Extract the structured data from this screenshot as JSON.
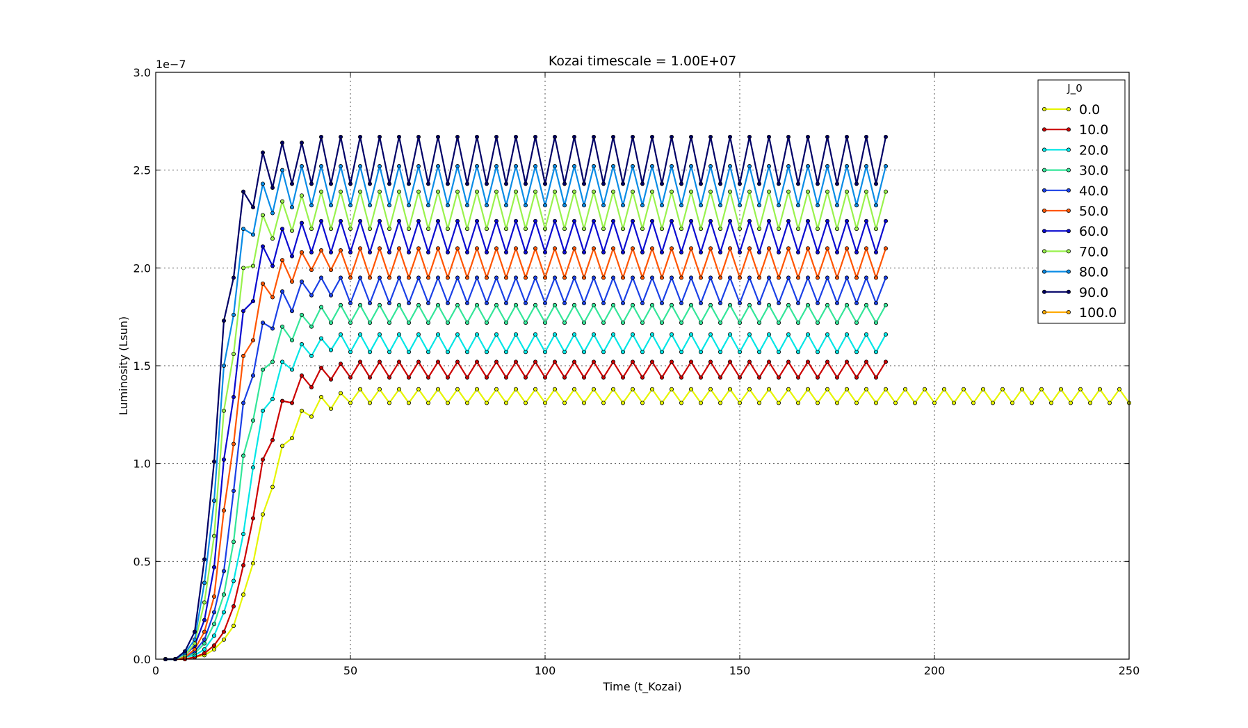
{
  "chart_data": {
    "type": "line",
    "title": "Kozai timescale = 1.00E+07",
    "xlabel": "Time (t_Kozai)",
    "ylabel": "Luminosity (Lsun)",
    "y_offset_text": "1e−7",
    "xlim": [
      0,
      250
    ],
    "ylim": [
      0,
      3.0
    ],
    "x_ticks": [
      0,
      50,
      100,
      150,
      200,
      250
    ],
    "x_tick_labels": [
      "0",
      "50",
      "100",
      "150",
      "200",
      "250"
    ],
    "y_ticks": [
      0,
      0.5,
      1.0,
      1.5,
      2.0,
      2.5,
      3.0
    ],
    "y_tick_labels": [
      "0.0",
      "0.5",
      "1.0",
      "1.5",
      "2.0",
      "2.5",
      "3.0"
    ],
    "grid": true,
    "legend_title": "J_0",
    "legend_position": "top-right",
    "series": [
      {
        "name": "0.0",
        "color": "#e6f500",
        "rise_x": [
          2.5,
          5,
          7.5,
          10,
          12.5,
          15,
          17.5,
          20,
          22.5,
          25,
          27.5,
          30,
          32.5,
          35,
          37.5,
          40,
          42.5,
          45,
          47.5
        ],
        "rise_y": [
          0,
          0,
          0,
          0.01,
          0.02,
          0.05,
          0.1,
          0.17,
          0.33,
          0.49,
          0.74,
          0.88,
          1.09,
          1.13,
          1.27,
          1.24,
          1.34,
          1.28,
          1.36
        ],
        "osc_start": 50,
        "osc_end": 250,
        "osc_step": 2.5,
        "osc_low": 1.31,
        "osc_high": 1.38
      },
      {
        "name": "10.0",
        "color": "#cc0000",
        "rise_x": [
          2.5,
          5,
          7.5,
          10,
          12.5,
          15,
          17.5,
          20,
          22.5,
          25,
          27.5,
          30,
          32.5,
          35,
          37.5,
          40,
          42.5,
          45,
          47.5
        ],
        "rise_y": [
          0,
          0,
          0,
          0.01,
          0.03,
          0.07,
          0.14,
          0.27,
          0.48,
          0.72,
          1.02,
          1.12,
          1.32,
          1.31,
          1.45,
          1.39,
          1.49,
          1.43,
          1.51
        ],
        "osc_start": 50,
        "osc_end": 187.5,
        "osc_step": 2.5,
        "osc_low": 1.44,
        "osc_high": 1.52
      },
      {
        "name": "20.0",
        "color": "#00e6e6",
        "rise_x": [
          2.5,
          5,
          7.5,
          10,
          12.5,
          15,
          17.5,
          20,
          22.5,
          25,
          27.5,
          30,
          32.5,
          35,
          37.5,
          40,
          42.5,
          45,
          47.5
        ],
        "rise_y": [
          0,
          0,
          0.01,
          0.02,
          0.05,
          0.12,
          0.24,
          0.4,
          0.64,
          0.98,
          1.27,
          1.33,
          1.52,
          1.48,
          1.61,
          1.55,
          1.64,
          1.58,
          1.66
        ],
        "osc_start": 50,
        "osc_end": 187.5,
        "osc_step": 2.5,
        "osc_low": 1.57,
        "osc_high": 1.66
      },
      {
        "name": "30.0",
        "color": "#33e699",
        "rise_x": [
          2.5,
          5,
          7.5,
          10,
          12.5,
          15,
          17.5,
          20,
          22.5,
          25,
          27.5,
          30,
          32.5,
          35,
          37.5,
          40,
          42.5,
          45,
          47.5
        ],
        "rise_y": [
          0,
          0,
          0.01,
          0.03,
          0.08,
          0.18,
          0.33,
          0.6,
          1.04,
          1.22,
          1.48,
          1.52,
          1.7,
          1.63,
          1.76,
          1.7,
          1.8,
          1.72,
          1.81
        ],
        "osc_start": 50,
        "osc_end": 187.5,
        "osc_step": 2.5,
        "osc_low": 1.72,
        "osc_high": 1.81
      },
      {
        "name": "40.0",
        "color": "#1a40e6",
        "rise_x": [
          2.5,
          5,
          7.5,
          10,
          12.5,
          15,
          17.5,
          20,
          22.5,
          25,
          27.5,
          30,
          32.5,
          35,
          37.5,
          40,
          42.5,
          45,
          47.5
        ],
        "rise_y": [
          0,
          0,
          0.01,
          0.04,
          0.1,
          0.24,
          0.45,
          0.86,
          1.31,
          1.45,
          1.72,
          1.69,
          1.88,
          1.78,
          1.93,
          1.86,
          1.95,
          1.86,
          1.95
        ],
        "osc_start": 50,
        "osc_end": 187.5,
        "osc_step": 2.5,
        "osc_low": 1.82,
        "osc_high": 1.95
      },
      {
        "name": "50.0",
        "color": "#ff5500",
        "rise_x": [
          2.5,
          5,
          7.5,
          10,
          12.5,
          15,
          17.5,
          20,
          22.5,
          25,
          27.5,
          30,
          32.5,
          35,
          37.5,
          40,
          42.5,
          45,
          47.5
        ],
        "rise_y": [
          0,
          0,
          0.01,
          0.05,
          0.14,
          0.32,
          0.76,
          1.1,
          1.55,
          1.63,
          1.92,
          1.85,
          2.04,
          1.93,
          2.08,
          1.99,
          2.09,
          1.99,
          2.09
        ],
        "osc_start": 50,
        "osc_end": 187.5,
        "osc_step": 2.5,
        "osc_low": 1.95,
        "osc_high": 2.1
      },
      {
        "name": "60.0",
        "color": "#0a0ad0",
        "rise_x": [
          2.5,
          5,
          7.5,
          10,
          12.5,
          15,
          17.5,
          20,
          22.5,
          25,
          27.5,
          30,
          32.5,
          35,
          37.5,
          40,
          42.5,
          45,
          47.5
        ],
        "rise_y": [
          0,
          0,
          0.02,
          0.07,
          0.2,
          0.47,
          1.02,
          1.34,
          1.78,
          1.83,
          2.11,
          2.01,
          2.2,
          2.06,
          2.23,
          2.08,
          2.24,
          2.08,
          2.24
        ],
        "osc_start": 50,
        "osc_end": 187.5,
        "osc_step": 2.5,
        "osc_low": 2.08,
        "osc_high": 2.24
      },
      {
        "name": "70.0",
        "color": "#99f24d",
        "rise_x": [
          2.5,
          5,
          7.5,
          10,
          12.5,
          15,
          17.5,
          20,
          22.5,
          25,
          27.5,
          30,
          32.5,
          35,
          37.5,
          40,
          42.5,
          45,
          47.5
        ],
        "rise_y": [
          0,
          0,
          0.02,
          0.08,
          0.29,
          0.63,
          1.27,
          1.56,
          2.0,
          2.01,
          2.27,
          2.15,
          2.34,
          2.19,
          2.37,
          2.2,
          2.39,
          2.2,
          2.39
        ],
        "osc_start": 50,
        "osc_end": 187.5,
        "osc_step": 2.5,
        "osc_low": 2.2,
        "osc_high": 2.39
      },
      {
        "name": "80.0",
        "color": "#0a8ce6",
        "rise_x": [
          2.5,
          5,
          7.5,
          10,
          12.5,
          15,
          17.5,
          20,
          22.5,
          25,
          27.5,
          30,
          32.5,
          35,
          37.5,
          40,
          42.5,
          45,
          47.5
        ],
        "rise_y": [
          0,
          0,
          0.03,
          0.1,
          0.39,
          0.81,
          1.5,
          1.76,
          2.2,
          2.17,
          2.43,
          2.28,
          2.5,
          2.31,
          2.52,
          2.32,
          2.52,
          2.32,
          2.52
        ],
        "osc_start": 50,
        "osc_end": 187.5,
        "osc_step": 2.5,
        "osc_low": 2.32,
        "osc_high": 2.52
      },
      {
        "name": "90.0",
        "color": "#000066",
        "rise_x": [
          2.5,
          5,
          7.5,
          10,
          12.5,
          15,
          17.5,
          20,
          22.5,
          25,
          27.5,
          30,
          32.5,
          35,
          37.5,
          40,
          42.5,
          45,
          47.5
        ],
        "rise_y": [
          0,
          0,
          0.04,
          0.14,
          0.51,
          1.01,
          1.73,
          1.95,
          2.39,
          2.31,
          2.59,
          2.41,
          2.64,
          2.43,
          2.64,
          2.43,
          2.67,
          2.43,
          2.67
        ],
        "osc_start": 50,
        "osc_end": 187.5,
        "osc_step": 2.5,
        "osc_low": 2.43,
        "osc_high": 2.67
      },
      {
        "name": "100.0",
        "color": "#ffaa00",
        "rise_x": [],
        "rise_y": [],
        "osc_start": null,
        "osc_end": null,
        "osc_step": null,
        "osc_low": null,
        "osc_high": null
      }
    ]
  }
}
